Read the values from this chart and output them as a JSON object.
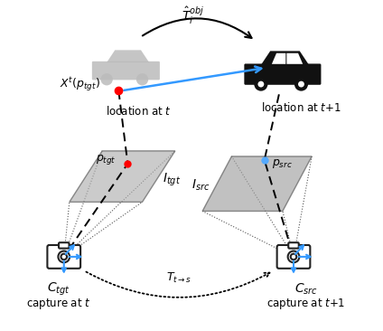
{
  "bg_color": "#ffffff",
  "arrow_color_blue": "#3399ff",
  "red_dot_color": "#ff0000",
  "blue_dot_color": "#55aaff",
  "figsize": [
    4.24,
    3.66
  ],
  "dpi": 100
}
